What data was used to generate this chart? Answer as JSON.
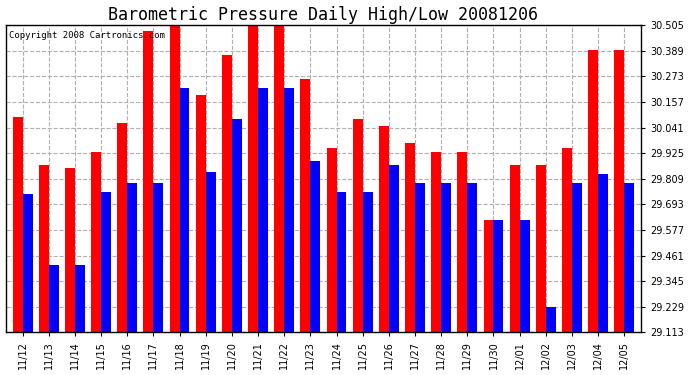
{
  "title": "Barometric Pressure Daily High/Low 20081206",
  "copyright": "Copyright 2008 Cartronics.com",
  "categories": [
    "11/12",
    "11/13",
    "11/14",
    "11/15",
    "11/16",
    "11/17",
    "11/18",
    "11/19",
    "11/20",
    "11/21",
    "11/22",
    "11/23",
    "11/24",
    "11/25",
    "11/26",
    "11/27",
    "11/28",
    "11/29",
    "11/30",
    "12/01",
    "12/02",
    "12/03",
    "12/04",
    "12/05"
  ],
  "highs": [
    30.09,
    29.87,
    29.86,
    29.93,
    30.06,
    30.48,
    30.5,
    30.19,
    30.37,
    30.5,
    30.5,
    30.26,
    29.95,
    30.08,
    30.05,
    29.97,
    29.93,
    29.93,
    29.62,
    29.87,
    29.87,
    29.95,
    30.39,
    30.39
  ],
  "lows": [
    29.74,
    29.42,
    29.42,
    29.75,
    29.79,
    29.79,
    30.22,
    29.84,
    30.08,
    30.22,
    30.22,
    29.89,
    29.75,
    29.75,
    29.87,
    29.79,
    29.79,
    29.79,
    29.62,
    29.62,
    29.23,
    29.79,
    29.83,
    29.79
  ],
  "ymin": 29.113,
  "ymax": 30.505,
  "yticks": [
    29.113,
    29.229,
    29.345,
    29.461,
    29.577,
    29.693,
    29.809,
    29.925,
    30.041,
    30.157,
    30.273,
    30.389,
    30.505
  ],
  "bar_width": 0.38,
  "high_color": "#ff0000",
  "low_color": "#0000ff",
  "bg_color": "#ffffff",
  "grid_color": "#b0b0b0",
  "title_fontsize": 12,
  "copyright_fontsize": 6.5,
  "tick_fontsize": 7
}
